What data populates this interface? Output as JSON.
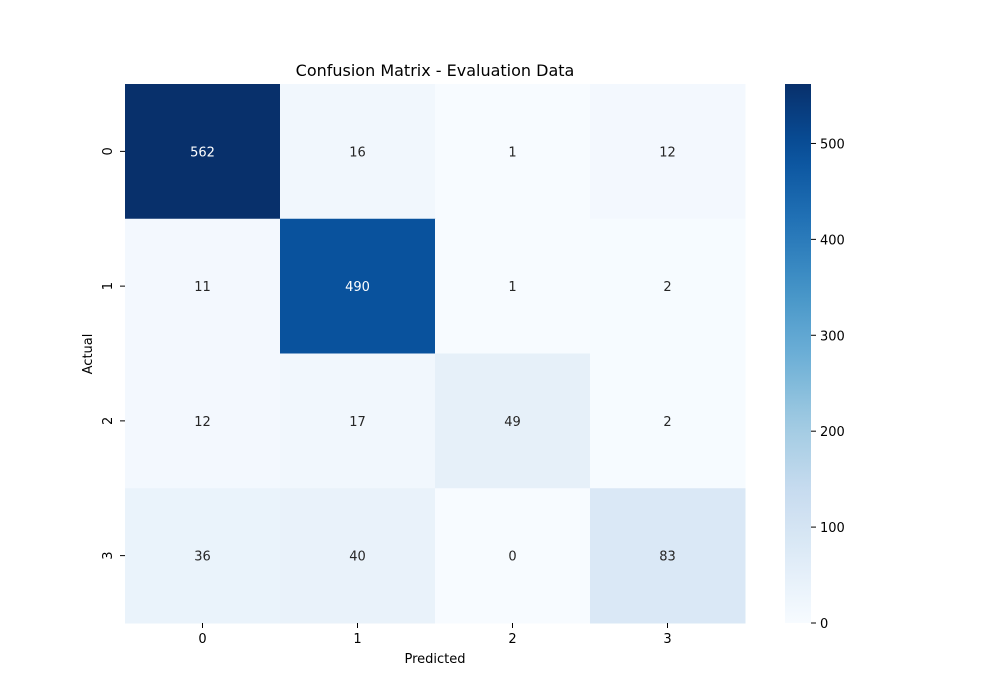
{
  "chart_data": {
    "type": "heatmap",
    "title": "Confusion Matrix - Evaluation Data",
    "xlabel": "Predicted",
    "ylabel": "Actual",
    "x_categories": [
      "0",
      "1",
      "2",
      "3"
    ],
    "y_categories": [
      "0",
      "1",
      "2",
      "3"
    ],
    "values": [
      [
        562,
        16,
        1,
        12
      ],
      [
        11,
        490,
        1,
        2
      ],
      [
        12,
        17,
        49,
        2
      ],
      [
        36,
        40,
        0,
        83
      ]
    ],
    "colormap": "Blues",
    "color_range": [
      0,
      562
    ],
    "colorbar_ticks": [
      0,
      100,
      200,
      300,
      400,
      500
    ],
    "annotations": true
  }
}
